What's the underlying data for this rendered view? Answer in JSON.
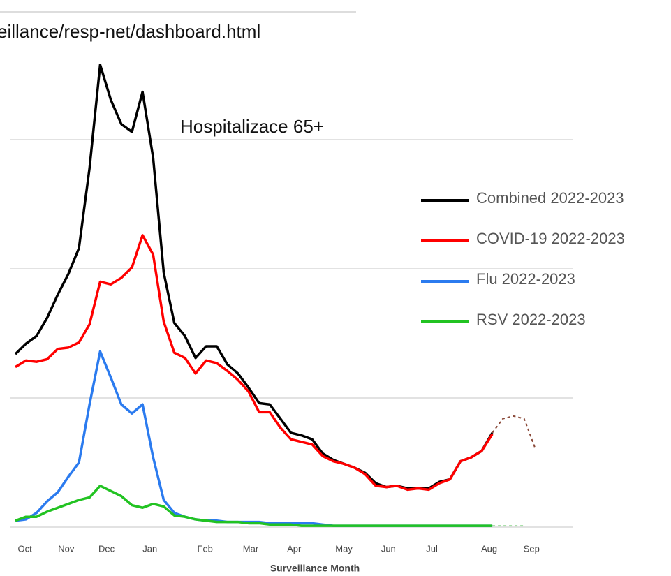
{
  "url": "eillance/resp-net/dashboard.html",
  "chart_data": {
    "type": "line",
    "title": "Hospitalizace 65+",
    "x_label": "Surveillance Month",
    "x": [
      0,
      1,
      2,
      3,
      4,
      5,
      6,
      7,
      8,
      9,
      10,
      11,
      12,
      13,
      14,
      15,
      16,
      17,
      18,
      19,
      20,
      21,
      22,
      23,
      24,
      25,
      26,
      27,
      28,
      29,
      30,
      31,
      32,
      33,
      34,
      35,
      36,
      37,
      38,
      39,
      40,
      41,
      42,
      43,
      44,
      45
    ],
    "xlim": [
      -0.46,
      52.57
    ],
    "xticks": [
      {
        "value": 0.9,
        "label": "Oct"
      },
      {
        "value": 4.8,
        "label": "Nov"
      },
      {
        "value": 8.6,
        "label": "Dec"
      },
      {
        "value": 12.7,
        "label": "Jan"
      },
      {
        "value": 17.9,
        "label": "Feb"
      },
      {
        "value": 22.2,
        "label": "Mar"
      },
      {
        "value": 26.3,
        "label": "Apr"
      },
      {
        "value": 31.0,
        "label": "May"
      },
      {
        "value": 35.2,
        "label": "Jun"
      },
      {
        "value": 39.3,
        "label": "Jul"
      },
      {
        "value": 44.7,
        "label": "Aug"
      },
      {
        "value": 48.7,
        "label": "Sep"
      }
    ],
    "ylim": [
      0,
      36
    ],
    "yticks": [
      0,
      10,
      20,
      30
    ],
    "grid": true,
    "legend": "right",
    "series": [
      {
        "name": "Combined 2022-2023",
        "color": "#000000",
        "values": [
          13.4,
          14.2,
          14.8,
          16.2,
          18.0,
          19.6,
          21.6,
          27.8,
          35.8,
          33.1,
          31.2,
          30.6,
          33.7,
          28.6,
          19.7,
          15.8,
          14.8,
          13.1,
          14.0,
          14.0,
          12.6,
          11.9,
          10.8,
          9.6,
          9.5,
          8.4,
          7.3,
          7.1,
          6.8,
          5.7,
          5.2,
          4.9,
          4.6,
          4.2,
          3.4,
          3.1,
          3.2,
          3.0,
          3.0,
          3.0,
          3.5,
          3.7,
          5.1,
          5.4,
          5.9,
          7.3
        ]
      },
      {
        "name": "COVID-19 2022-2023",
        "color": "#ff0000",
        "values": [
          12.4,
          12.9,
          12.8,
          13.0,
          13.8,
          13.9,
          14.3,
          15.7,
          19.0,
          18.8,
          19.3,
          20.1,
          22.6,
          21.1,
          15.9,
          13.5,
          13.1,
          11.9,
          12.9,
          12.7,
          12.1,
          11.4,
          10.5,
          8.9,
          8.9,
          7.7,
          6.8,
          6.6,
          6.4,
          5.5,
          5.1,
          4.9,
          4.6,
          4.1,
          3.2,
          3.1,
          3.2,
          2.9,
          3.0,
          2.9,
          3.4,
          3.7,
          5.1,
          5.4,
          5.9,
          7.2
        ]
      },
      {
        "name": "Flu 2022-2023",
        "color": "#2b7bef",
        "values": [
          0.5,
          0.6,
          1.1,
          2.0,
          2.7,
          3.9,
          5.0,
          9.5,
          13.6,
          11.6,
          9.5,
          8.8,
          9.5,
          5.4,
          2.1,
          1.1,
          0.8,
          0.6,
          0.5,
          0.5,
          0.4,
          0.4,
          0.4,
          0.4,
          0.3,
          0.3,
          0.3,
          0.3,
          0.3,
          0.2,
          0.1,
          0.1,
          0.1,
          0.1,
          0.1,
          0.1,
          0.1,
          0.1,
          0.1,
          0.1,
          0.1,
          0.1,
          0.1,
          0.1,
          0.1,
          0.1
        ]
      },
      {
        "name": "RSV 2022-2023",
        "color": "#22c322",
        "values": [
          0.5,
          0.8,
          0.8,
          1.2,
          1.5,
          1.8,
          2.1,
          2.3,
          3.2,
          2.8,
          2.4,
          1.7,
          1.5,
          1.8,
          1.6,
          0.9,
          0.8,
          0.6,
          0.5,
          0.4,
          0.4,
          0.4,
          0.3,
          0.3,
          0.2,
          0.2,
          0.2,
          0.1,
          0.1,
          0.1,
          0.1,
          0.1,
          0.1,
          0.1,
          0.1,
          0.1,
          0.1,
          0.1,
          0.1,
          0.1,
          0.1,
          0.1,
          0.1,
          0.1,
          0.1,
          0.1
        ]
      }
    ],
    "projections": [
      {
        "color": "#8b4a3a",
        "x": [
          45,
          46,
          47,
          48,
          49
        ],
        "values": [
          7.3,
          8.4,
          8.6,
          8.4,
          6.2
        ]
      },
      {
        "color": "#9fdc9f",
        "x": [
          45,
          46,
          47,
          48
        ],
        "values": [
          0.1,
          0.1,
          0.1,
          0.1
        ]
      }
    ]
  }
}
